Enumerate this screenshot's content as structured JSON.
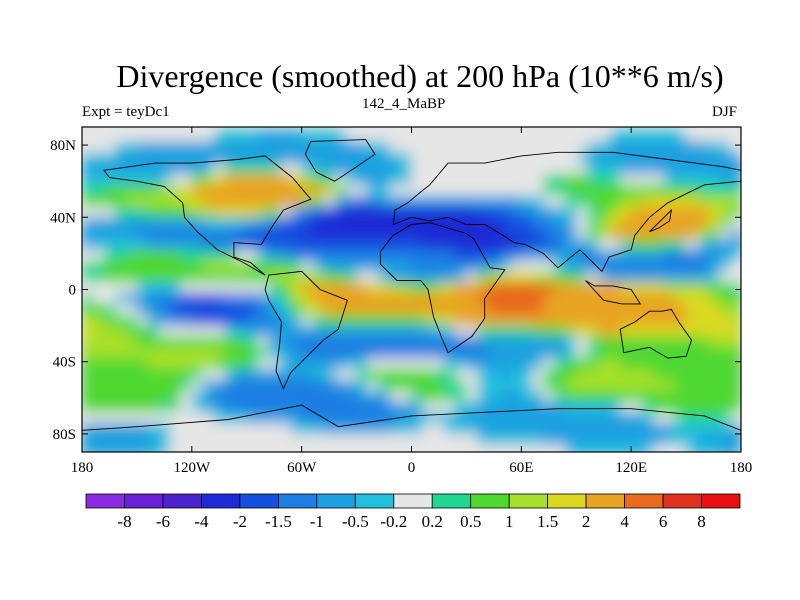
{
  "chart_data": {
    "type": "heatmap",
    "title": "Divergence (smoothed) at 200 hPa (10**6 m/s)",
    "subtitle_left": "Expt = teyDc1",
    "subtitle_center": "142_4_MaBP",
    "subtitle_right": "DJF",
    "x_ticks": [
      {
        "value": -180,
        "label": "180"
      },
      {
        "value": -120,
        "label": "120W"
      },
      {
        "value": -60,
        "label": "60W"
      },
      {
        "value": 0,
        "label": "0"
      },
      {
        "value": 60,
        "label": "60E"
      },
      {
        "value": 120,
        "label": "120E"
      },
      {
        "value": 180,
        "label": "180"
      }
    ],
    "y_ticks": [
      {
        "value": 80,
        "label": "80N"
      },
      {
        "value": 40,
        "label": "40N"
      },
      {
        "value": 0,
        "label": "0"
      },
      {
        "value": -40,
        "label": "40S"
      },
      {
        "value": -80,
        "label": "80S"
      }
    ],
    "xlim": [
      -180,
      180
    ],
    "ylim": [
      -90,
      90
    ],
    "colorbar": {
      "labels": [
        "-8",
        "-6",
        "-4",
        "-2",
        "-1.5",
        "-1",
        "-0.5",
        "-0.2",
        "0.2",
        "0.5",
        "1",
        "1.5",
        "2",
        "4",
        "6",
        "8"
      ],
      "colors": [
        "#8a2be2",
        "#6a1fd8",
        "#4b23cf",
        "#1f2ad6",
        "#1450e0",
        "#1f7ee3",
        "#1ea0e0",
        "#21c0dd",
        "#e6e6e6",
        "#1fd790",
        "#4fd830",
        "#a6e02a",
        "#dcd821",
        "#e8a420",
        "#e8691f",
        "#e0301e",
        "#e81010"
      ]
    },
    "fields": [
      {
        "lon": -140,
        "lat": 47,
        "val": 1.2
      },
      {
        "lon": -100,
        "lat": 48,
        "val": 2.6
      },
      {
        "lon": -80,
        "lat": 55,
        "val": 4.5
      },
      {
        "lon": -130,
        "lat": 68,
        "val": -0.9
      },
      {
        "lon": -75,
        "lat": 73,
        "val": -0.8
      },
      {
        "lon": -40,
        "lat": 68,
        "val": -0.7
      },
      {
        "lon": -165,
        "lat": 32,
        "val": -1.1
      },
      {
        "lon": -125,
        "lat": 33,
        "val": -1.6
      },
      {
        "lon": -80,
        "lat": 30,
        "val": -1.8
      },
      {
        "lon": -50,
        "lat": 38,
        "val": -2.2
      },
      {
        "lon": -20,
        "lat": 33,
        "val": -2.4
      },
      {
        "lon": 20,
        "lat": 32,
        "val": -2.6
      },
      {
        "lon": 50,
        "lat": 33,
        "val": -2.1
      },
      {
        "lon": 80,
        "lat": 42,
        "val": -0.8
      },
      {
        "lon": 100,
        "lat": 50,
        "val": 0.9
      },
      {
        "lon": 140,
        "lat": 50,
        "val": 1.8
      },
      {
        "lon": 135,
        "lat": 34,
        "val": 4.0
      },
      {
        "lon": 160,
        "lat": 18,
        "val": -1.8
      },
      {
        "lon": 120,
        "lat": 18,
        "val": -1.2
      },
      {
        "lon": 150,
        "lat": 63,
        "val": -0.9
      },
      {
        "lon": 130,
        "lat": 72,
        "val": -0.6
      },
      {
        "lon": -170,
        "lat": 15,
        "val": 1.0
      },
      {
        "lon": -140,
        "lat": 13,
        "val": 0.9
      },
      {
        "lon": -100,
        "lat": 10,
        "val": 1.2
      },
      {
        "lon": -20,
        "lat": 16,
        "val": -0.8
      },
      {
        "lon": 10,
        "lat": 12,
        "val": -1.1
      },
      {
        "lon": -165,
        "lat": -8,
        "val": -1.2
      },
      {
        "lon": -125,
        "lat": -12,
        "val": -2.1
      },
      {
        "lon": -90,
        "lat": -10,
        "val": -1.7
      },
      {
        "lon": -40,
        "lat": -6,
        "val": 3.0
      },
      {
        "lon": -10,
        "lat": -10,
        "val": 2.2
      },
      {
        "lon": 30,
        "lat": -12,
        "val": 2.3
      },
      {
        "lon": 50,
        "lat": -8,
        "val": 6.0
      },
      {
        "lon": 85,
        "lat": -10,
        "val": 3.0
      },
      {
        "lon": 120,
        "lat": -12,
        "val": 2.4
      },
      {
        "lon": 160,
        "lat": -10,
        "val": 2.0
      },
      {
        "lon": -170,
        "lat": -15,
        "val": 2.2
      },
      {
        "lon": -150,
        "lat": -34,
        "val": 1.0
      },
      {
        "lon": -110,
        "lat": -32,
        "val": 1.1
      },
      {
        "lon": -50,
        "lat": -28,
        "val": -1.2
      },
      {
        "lon": -10,
        "lat": -25,
        "val": -1.0
      },
      {
        "lon": 20,
        "lat": -30,
        "val": -1.6
      },
      {
        "lon": 60,
        "lat": -30,
        "val": -0.8
      },
      {
        "lon": 140,
        "lat": -35,
        "val": 0.8
      },
      {
        "lon": -160,
        "lat": -56,
        "val": 0.9
      },
      {
        "lon": -80,
        "lat": -58,
        "val": -1.1
      },
      {
        "lon": 10,
        "lat": -50,
        "val": 1.3
      },
      {
        "lon": 40,
        "lat": -48,
        "val": -0.8
      },
      {
        "lon": 100,
        "lat": -50,
        "val": 1.2
      },
      {
        "lon": 150,
        "lat": -60,
        "val": 1.0
      },
      {
        "lon": -30,
        "lat": -65,
        "val": -1.2
      },
      {
        "lon": 60,
        "lat": -70,
        "val": -0.7
      },
      {
        "lon": 110,
        "lat": -75,
        "val": -0.9
      },
      {
        "lon": -170,
        "lat": -82,
        "val": -0.6
      }
    ]
  }
}
